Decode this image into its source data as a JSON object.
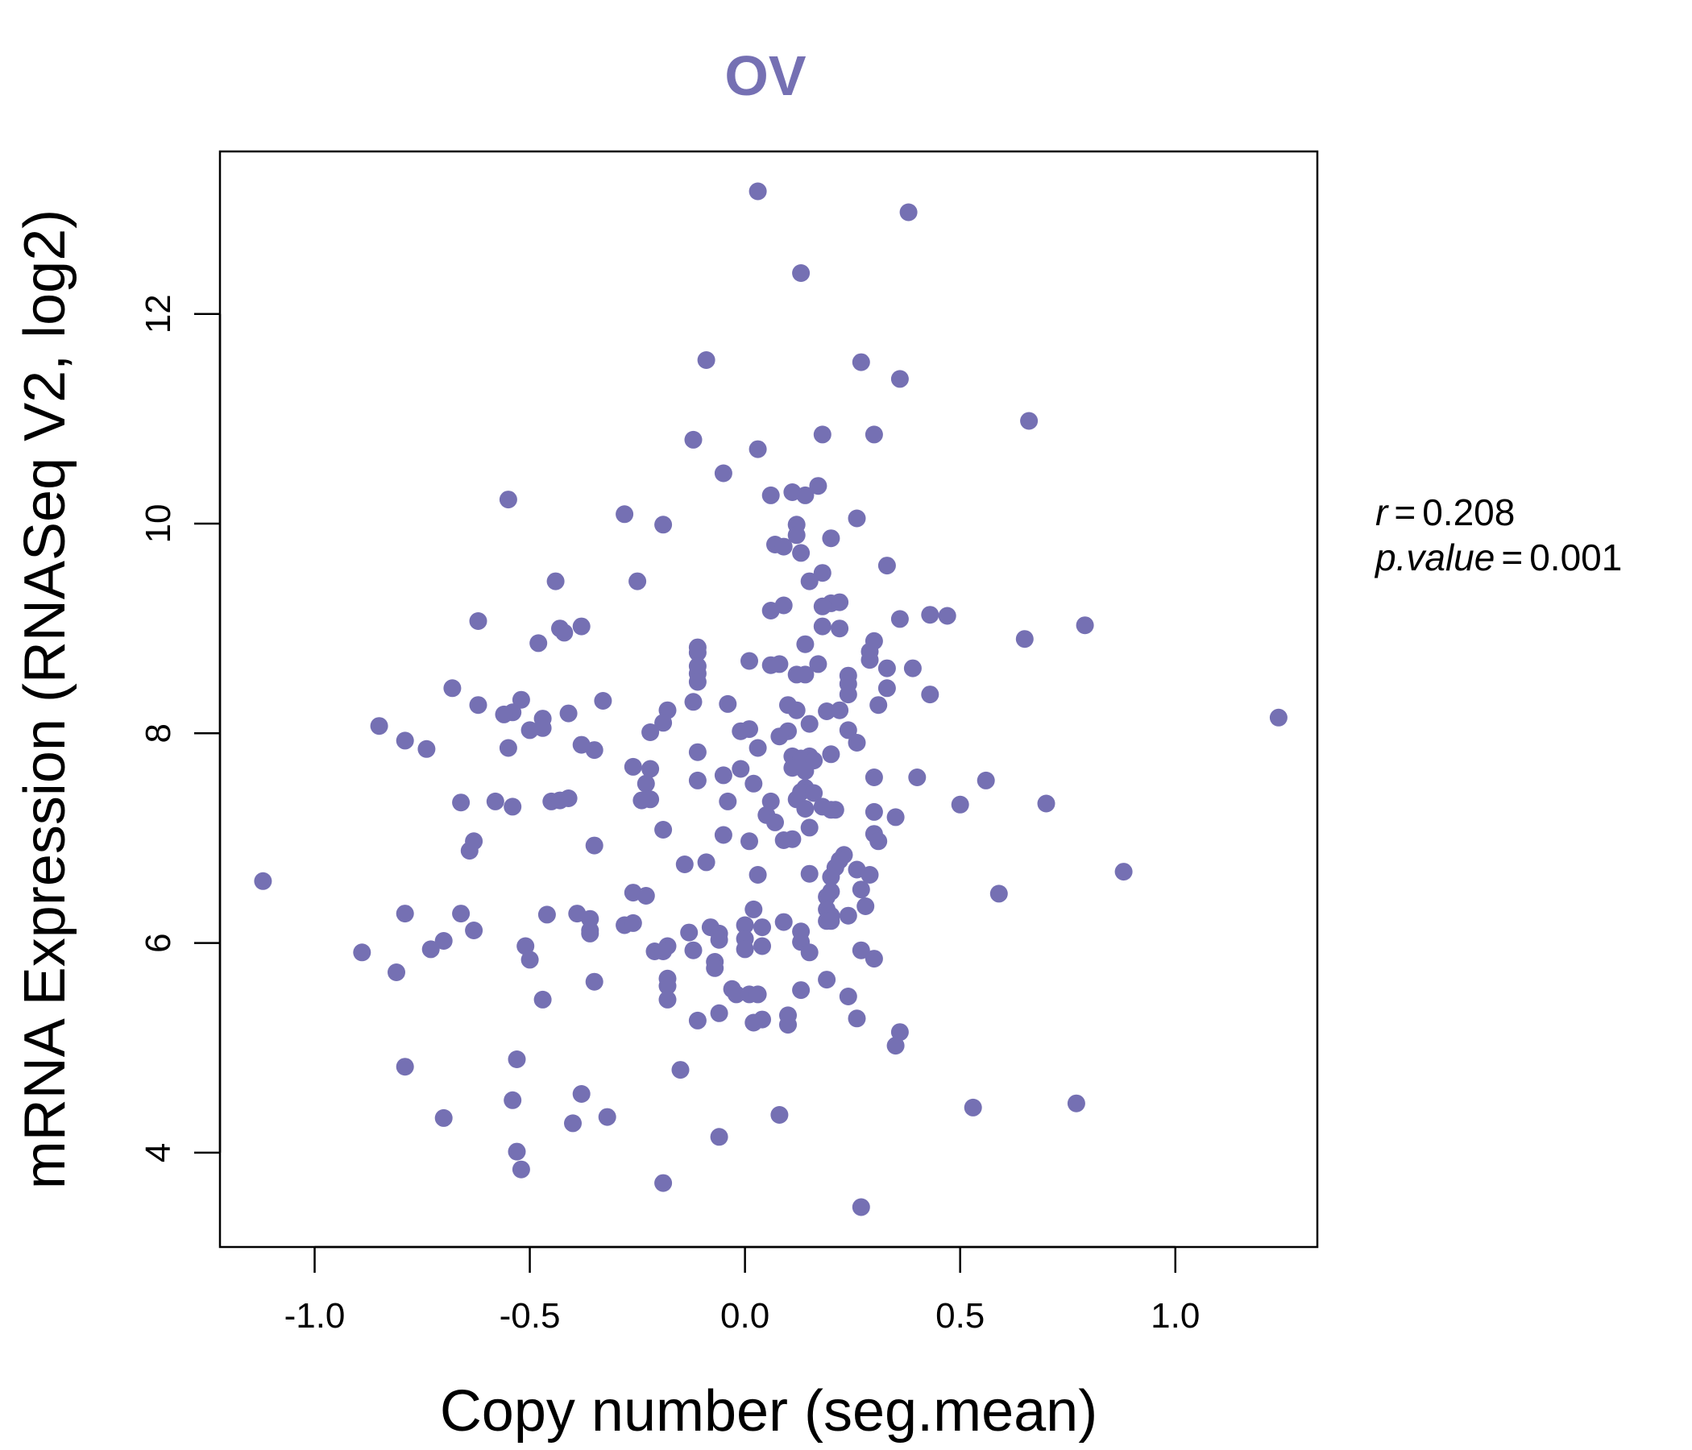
{
  "chart_data": {
    "type": "scatter",
    "title": "OV",
    "xlabel": "Copy number (seg.mean)",
    "ylabel": "mRNA Expression (RNASeq V2, log2)",
    "xlim": [
      -1.22,
      1.33
    ],
    "ylim": [
      3.1,
      13.55
    ],
    "x_ticks": [
      -1.0,
      -0.5,
      0.0,
      0.5,
      1.0
    ],
    "x_tick_labels": [
      "-1.0",
      "-0.5",
      "0.0",
      "0.5",
      "1.0"
    ],
    "y_ticks": [
      4,
      6,
      8,
      10,
      12
    ],
    "y_tick_labels": [
      "4",
      "6",
      "8",
      "10",
      "12"
    ],
    "point_color": "#7570b3",
    "grid": false,
    "legend": "none",
    "annotations": {
      "r_label": "r",
      "r_value": "0.208",
      "p_label": "p.value",
      "p_value": "0.001"
    },
    "points": [
      {
        "x": 0.03,
        "y": 13.17
      },
      {
        "x": 0.38,
        "y": 12.97
      },
      {
        "x": 0.13,
        "y": 12.39
      },
      {
        "x": -0.09,
        "y": 11.56
      },
      {
        "x": 0.27,
        "y": 11.54
      },
      {
        "x": 0.36,
        "y": 11.38
      },
      {
        "x": 0.66,
        "y": 10.98
      },
      {
        "x": -0.12,
        "y": 10.8
      },
      {
        "x": 0.03,
        "y": 10.71
      },
      {
        "x": 0.18,
        "y": 10.85
      },
      {
        "x": 0.3,
        "y": 10.85
      },
      {
        "x": -0.05,
        "y": 10.48
      },
      {
        "x": 0.17,
        "y": 10.36
      },
      {
        "x": 0.11,
        "y": 10.3
      },
      {
        "x": 0.14,
        "y": 10.27
      },
      {
        "x": 0.06,
        "y": 10.27
      },
      {
        "x": -0.55,
        "y": 10.23
      },
      {
        "x": -0.28,
        "y": 10.09
      },
      {
        "x": 0.26,
        "y": 10.05
      },
      {
        "x": -0.19,
        "y": 9.99
      },
      {
        "x": 0.12,
        "y": 9.99
      },
      {
        "x": 0.12,
        "y": 9.89
      },
      {
        "x": 0.2,
        "y": 9.86
      },
      {
        "x": 0.07,
        "y": 9.8
      },
      {
        "x": 0.09,
        "y": 9.78
      },
      {
        "x": 0.13,
        "y": 9.72
      },
      {
        "x": 0.33,
        "y": 9.6
      },
      {
        "x": 0.18,
        "y": 9.53
      },
      {
        "x": -0.25,
        "y": 9.45
      },
      {
        "x": -0.44,
        "y": 9.45
      },
      {
        "x": 0.15,
        "y": 9.45
      },
      {
        "x": 0.2,
        "y": 9.24
      },
      {
        "x": 0.09,
        "y": 9.22
      },
      {
        "x": 0.18,
        "y": 9.21
      },
      {
        "x": 0.22,
        "y": 9.25
      },
      {
        "x": 0.06,
        "y": 9.17
      },
      {
        "x": 0.43,
        "y": 9.13
      },
      {
        "x": 0.47,
        "y": 9.12
      },
      {
        "x": 0.36,
        "y": 9.09
      },
      {
        "x": -0.62,
        "y": 9.07
      },
      {
        "x": -0.38,
        "y": 9.02
      },
      {
        "x": -0.43,
        "y": 9.0
      },
      {
        "x": -0.42,
        "y": 8.96
      },
      {
        "x": 0.18,
        "y": 9.02
      },
      {
        "x": 0.22,
        "y": 9.0
      },
      {
        "x": 0.79,
        "y": 9.03
      },
      {
        "x": 0.65,
        "y": 8.9
      },
      {
        "x": 0.3,
        "y": 8.88
      },
      {
        "x": -0.48,
        "y": 8.86
      },
      {
        "x": 0.14,
        "y": 8.85
      },
      {
        "x": -0.11,
        "y": 8.82
      },
      {
        "x": -0.11,
        "y": 8.77
      },
      {
        "x": 0.29,
        "y": 8.78
      },
      {
        "x": 0.29,
        "y": 8.7
      },
      {
        "x": 0.01,
        "y": 8.69
      },
      {
        "x": 0.06,
        "y": 8.65
      },
      {
        "x": 0.08,
        "y": 8.66
      },
      {
        "x": 0.17,
        "y": 8.66
      },
      {
        "x": -0.11,
        "y": 8.64
      },
      {
        "x": -0.11,
        "y": 8.57
      },
      {
        "x": 0.33,
        "y": 8.62
      },
      {
        "x": 0.39,
        "y": 8.62
      },
      {
        "x": 0.12,
        "y": 8.56
      },
      {
        "x": 0.14,
        "y": 8.56
      },
      {
        "x": 0.24,
        "y": 8.55
      },
      {
        "x": -0.11,
        "y": 8.49
      },
      {
        "x": 0.24,
        "y": 8.47
      },
      {
        "x": 0.33,
        "y": 8.43
      },
      {
        "x": -0.68,
        "y": 8.43
      },
      {
        "x": 0.24,
        "y": 8.37
      },
      {
        "x": 0.43,
        "y": 8.37
      },
      {
        "x": -0.52,
        "y": 8.32
      },
      {
        "x": -0.33,
        "y": 8.31
      },
      {
        "x": -0.12,
        "y": 8.3
      },
      {
        "x": -0.04,
        "y": 8.28
      },
      {
        "x": 0.1,
        "y": 8.27
      },
      {
        "x": 0.31,
        "y": 8.27
      },
      {
        "x": -0.62,
        "y": 8.27
      },
      {
        "x": 0.12,
        "y": 8.22
      },
      {
        "x": 0.19,
        "y": 8.21
      },
      {
        "x": 0.22,
        "y": 8.22
      },
      {
        "x": -0.54,
        "y": 8.2
      },
      {
        "x": -0.56,
        "y": 8.18
      },
      {
        "x": -0.41,
        "y": 8.19
      },
      {
        "x": -0.18,
        "y": 8.22
      },
      {
        "x": -0.47,
        "y": 8.14
      },
      {
        "x": -0.19,
        "y": 8.1
      },
      {
        "x": -0.47,
        "y": 8.05
      },
      {
        "x": 0.15,
        "y": 8.09
      },
      {
        "x": -0.85,
        "y": 8.07
      },
      {
        "x": -0.5,
        "y": 8.03
      },
      {
        "x": 0.01,
        "y": 8.04
      },
      {
        "x": -0.22,
        "y": 8.01
      },
      {
        "x": -0.01,
        "y": 8.02
      },
      {
        "x": 0.24,
        "y": 8.03
      },
      {
        "x": 0.1,
        "y": 8.02
      },
      {
        "x": 0.08,
        "y": 7.97
      },
      {
        "x": 0.26,
        "y": 7.91
      },
      {
        "x": -0.79,
        "y": 7.93
      },
      {
        "x": -0.38,
        "y": 7.89
      },
      {
        "x": 0.03,
        "y": 7.86
      },
      {
        "x": -0.74,
        "y": 7.85
      },
      {
        "x": -0.55,
        "y": 7.86
      },
      {
        "x": -0.35,
        "y": 7.84
      },
      {
        "x": -0.11,
        "y": 7.82
      },
      {
        "x": 0.2,
        "y": 7.8
      },
      {
        "x": 0.11,
        "y": 7.78
      },
      {
        "x": 0.15,
        "y": 7.78
      },
      {
        "x": 0.13,
        "y": 7.76
      },
      {
        "x": 0.16,
        "y": 7.74
      },
      {
        "x": -0.26,
        "y": 7.68
      },
      {
        "x": -0.22,
        "y": 7.66
      },
      {
        "x": -0.01,
        "y": 7.66
      },
      {
        "x": 0.11,
        "y": 7.67
      },
      {
        "x": 0.14,
        "y": 7.64
      },
      {
        "x": 0.4,
        "y": 7.58
      },
      {
        "x": -0.05,
        "y": 7.6
      },
      {
        "x": 0.3,
        "y": 7.58
      },
      {
        "x": -0.11,
        "y": 7.55
      },
      {
        "x": 0.56,
        "y": 7.55
      },
      {
        "x": -0.23,
        "y": 7.52
      },
      {
        "x": 0.02,
        "y": 7.52
      },
      {
        "x": 0.14,
        "y": 7.48
      },
      {
        "x": 0.13,
        "y": 7.44
      },
      {
        "x": 0.16,
        "y": 7.43
      },
      {
        "x": -0.41,
        "y": 7.38
      },
      {
        "x": -0.22,
        "y": 7.37
      },
      {
        "x": -0.45,
        "y": 7.35
      },
      {
        "x": -0.43,
        "y": 7.36
      },
      {
        "x": -0.58,
        "y": 7.35
      },
      {
        "x": -0.66,
        "y": 7.34
      },
      {
        "x": -0.24,
        "y": 7.36
      },
      {
        "x": 0.06,
        "y": 7.35
      },
      {
        "x": 0.12,
        "y": 7.37
      },
      {
        "x": -0.04,
        "y": 7.35
      },
      {
        "x": 0.5,
        "y": 7.32
      },
      {
        "x": 0.7,
        "y": 7.33
      },
      {
        "x": -0.54,
        "y": 7.3
      },
      {
        "x": 0.18,
        "y": 7.3
      },
      {
        "x": 0.14,
        "y": 7.28
      },
      {
        "x": 0.2,
        "y": 7.27
      },
      {
        "x": 0.21,
        "y": 7.27
      },
      {
        "x": 0.3,
        "y": 7.25
      },
      {
        "x": 0.05,
        "y": 7.22
      },
      {
        "x": 0.35,
        "y": 7.2
      },
      {
        "x": 0.07,
        "y": 7.15
      },
      {
        "x": 0.15,
        "y": 7.1
      },
      {
        "x": -0.19,
        "y": 7.08
      },
      {
        "x": -0.05,
        "y": 7.03
      },
      {
        "x": 0.3,
        "y": 7.04
      },
      {
        "x": 0.09,
        "y": 6.98
      },
      {
        "x": 0.11,
        "y": 6.99
      },
      {
        "x": 0.31,
        "y": 6.97
      },
      {
        "x": -0.63,
        "y": 6.97
      },
      {
        "x": 0.01,
        "y": 6.97
      },
      {
        "x": -0.35,
        "y": 6.93
      },
      {
        "x": -0.64,
        "y": 6.88
      },
      {
        "x": 0.23,
        "y": 6.84
      },
      {
        "x": 0.22,
        "y": 6.79
      },
      {
        "x": -0.09,
        "y": 6.77
      },
      {
        "x": -0.14,
        "y": 6.75
      },
      {
        "x": 0.21,
        "y": 6.72
      },
      {
        "x": 0.26,
        "y": 6.7
      },
      {
        "x": 0.88,
        "y": 6.68
      },
      {
        "x": 0.03,
        "y": 6.65
      },
      {
        "x": 0.15,
        "y": 6.66
      },
      {
        "x": 0.29,
        "y": 6.65
      },
      {
        "x": 0.2,
        "y": 6.63
      },
      {
        "x": -1.12,
        "y": 6.59
      },
      {
        "x": 0.27,
        "y": 6.51
      },
      {
        "x": 0.2,
        "y": 6.49
      },
      {
        "x": -0.26,
        "y": 6.48
      },
      {
        "x": -0.23,
        "y": 6.45
      },
      {
        "x": 0.59,
        "y": 6.47
      },
      {
        "x": 0.19,
        "y": 6.44
      },
      {
        "x": 0.28,
        "y": 6.35
      },
      {
        "x": 0.02,
        "y": 6.32
      },
      {
        "x": 0.19,
        "y": 6.32
      },
      {
        "x": -0.79,
        "y": 6.28
      },
      {
        "x": -0.66,
        "y": 6.28
      },
      {
        "x": -0.46,
        "y": 6.27
      },
      {
        "x": -0.39,
        "y": 6.28
      },
      {
        "x": 0.2,
        "y": 6.26
      },
      {
        "x": 0.24,
        "y": 6.26
      },
      {
        "x": -0.36,
        "y": 6.23
      },
      {
        "x": 0.09,
        "y": 6.2
      },
      {
        "x": 0.19,
        "y": 6.21
      },
      {
        "x": 0.2,
        "y": 6.21
      },
      {
        "x": -0.28,
        "y": 6.17
      },
      {
        "x": -0.26,
        "y": 6.19
      },
      {
        "x": 0.0,
        "y": 6.17
      },
      {
        "x": 0.04,
        "y": 6.15
      },
      {
        "x": -0.08,
        "y": 6.15
      },
      {
        "x": -0.63,
        "y": 6.12
      },
      {
        "x": -0.36,
        "y": 6.12
      },
      {
        "x": -0.36,
        "y": 6.09
      },
      {
        "x": 0.13,
        "y": 6.11
      },
      {
        "x": -0.13,
        "y": 6.1
      },
      {
        "x": -0.06,
        "y": 6.09
      },
      {
        "x": 0.0,
        "y": 6.04
      },
      {
        "x": -0.06,
        "y": 6.03
      },
      {
        "x": 0.13,
        "y": 6.01
      },
      {
        "x": -0.7,
        "y": 6.02
      },
      {
        "x": 0.04,
        "y": 5.97
      },
      {
        "x": -0.51,
        "y": 5.97
      },
      {
        "x": -0.18,
        "y": 5.97
      },
      {
        "x": -0.73,
        "y": 5.94
      },
      {
        "x": 0.0,
        "y": 5.94
      },
      {
        "x": -0.12,
        "y": 5.93
      },
      {
        "x": -0.21,
        "y": 5.92
      },
      {
        "x": -0.19,
        "y": 5.92
      },
      {
        "x": 0.27,
        "y": 5.93
      },
      {
        "x": 0.15,
        "y": 5.91
      },
      {
        "x": -0.89,
        "y": 5.91
      },
      {
        "x": 0.3,
        "y": 5.85
      },
      {
        "x": -0.5,
        "y": 5.84
      },
      {
        "x": -0.07,
        "y": 5.82
      },
      {
        "x": -0.07,
        "y": 5.76
      },
      {
        "x": -0.81,
        "y": 5.72
      },
      {
        "x": -0.18,
        "y": 5.66
      },
      {
        "x": 0.19,
        "y": 5.65
      },
      {
        "x": -0.35,
        "y": 5.63
      },
      {
        "x": -0.18,
        "y": 5.59
      },
      {
        "x": -0.03,
        "y": 5.56
      },
      {
        "x": 0.13,
        "y": 5.55
      },
      {
        "x": -0.02,
        "y": 5.51
      },
      {
        "x": 0.01,
        "y": 5.51
      },
      {
        "x": 0.03,
        "y": 5.51
      },
      {
        "x": 0.24,
        "y": 5.49
      },
      {
        "x": -0.47,
        "y": 5.46
      },
      {
        "x": -0.18,
        "y": 5.46
      },
      {
        "x": -0.06,
        "y": 5.33
      },
      {
        "x": 0.1,
        "y": 5.31
      },
      {
        "x": 0.04,
        "y": 5.27
      },
      {
        "x": -0.11,
        "y": 5.26
      },
      {
        "x": 0.26,
        "y": 5.28
      },
      {
        "x": 0.02,
        "y": 5.24
      },
      {
        "x": 0.1,
        "y": 5.22
      },
      {
        "x": 0.36,
        "y": 5.15
      },
      {
        "x": 0.35,
        "y": 5.02
      },
      {
        "x": -0.53,
        "y": 4.89
      },
      {
        "x": -0.79,
        "y": 4.82
      },
      {
        "x": -0.15,
        "y": 4.79
      },
      {
        "x": -0.38,
        "y": 4.56
      },
      {
        "x": -0.54,
        "y": 4.5
      },
      {
        "x": 0.77,
        "y": 4.47
      },
      {
        "x": 0.53,
        "y": 4.43
      },
      {
        "x": 0.08,
        "y": 4.36
      },
      {
        "x": -0.32,
        "y": 4.34
      },
      {
        "x": -0.7,
        "y": 4.33
      },
      {
        "x": -0.4,
        "y": 4.28
      },
      {
        "x": -0.06,
        "y": 4.15
      },
      {
        "x": -0.53,
        "y": 4.01
      },
      {
        "x": -0.52,
        "y": 3.84
      },
      {
        "x": -0.19,
        "y": 3.71
      },
      {
        "x": 0.27,
        "y": 3.48
      },
      {
        "x": 1.24,
        "y": 8.15
      }
    ]
  }
}
